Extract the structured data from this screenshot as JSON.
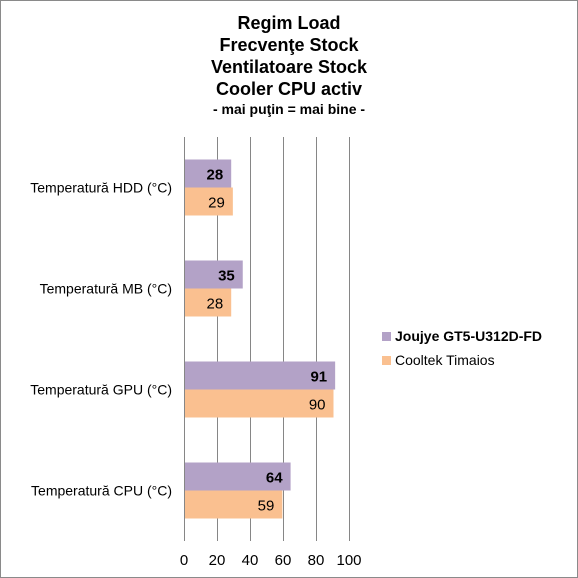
{
  "chart_data": {
    "type": "bar",
    "orientation": "horizontal",
    "title_lines": [
      "Regim Load",
      "Frecvenţe Stock",
      "Ventilatoare Stock",
      "Cooler CPU activ"
    ],
    "subtitle": "- mai puţin = mai bine -",
    "categories": [
      "Temperatură HDD (°C)",
      "Temperatură MB (°C)",
      "Temperatură GPU (°C)",
      "Temperatură CPU (°C)"
    ],
    "series": [
      {
        "name": "Joujye GT5-U312D-FD",
        "values": [
          28,
          35,
          91,
          64
        ],
        "color": "#b3a2c7",
        "label_bold": true
      },
      {
        "name": "Cooltek Timaios",
        "values": [
          29,
          28,
          90,
          59
        ],
        "color": "#fac090",
        "label_bold": false
      }
    ],
    "xlim": [
      0,
      100
    ],
    "xticks": [
      "0",
      "20",
      "40",
      "60",
      "80",
      "100"
    ],
    "grid": true,
    "legend_position": "right"
  }
}
